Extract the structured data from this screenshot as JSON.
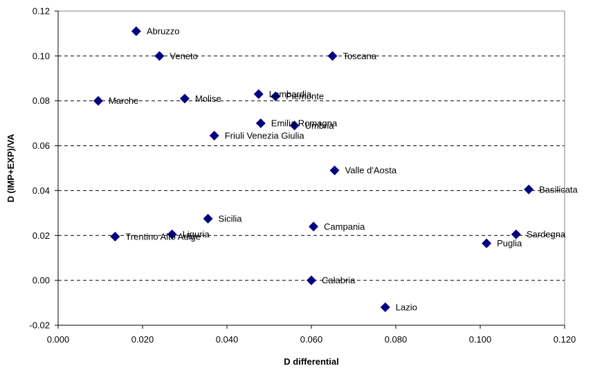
{
  "chart_data": {
    "type": "scatter",
    "title": "",
    "xlabel": "D differential",
    "ylabel": "D (IMP+EXP)/VA",
    "xlim": [
      0.0,
      0.12
    ],
    "ylim": [
      -0.02,
      0.12
    ],
    "x_ticks": [
      "0.000",
      "0.020",
      "0.040",
      "0.060",
      "0.080",
      "0.100",
      "0.120"
    ],
    "y_ticks": [
      "-0.02",
      "0.00",
      "0.02",
      "0.04",
      "0.06",
      "0.08",
      "0.10",
      "0.12"
    ],
    "grid": "horizontal dashed",
    "legend": "none",
    "marker_color": "#000080",
    "points": [
      {
        "label": "Abruzzo",
        "x": 0.0185,
        "y": 0.111
      },
      {
        "label": "Veneto",
        "x": 0.024,
        "y": 0.1
      },
      {
        "label": "Toscana",
        "x": 0.065,
        "y": 0.1
      },
      {
        "label": "Marche",
        "x": 0.0095,
        "y": 0.08
      },
      {
        "label": "Molise",
        "x": 0.03,
        "y": 0.081
      },
      {
        "label": "Lombardia",
        "x": 0.0475,
        "y": 0.083
      },
      {
        "label": "Piemonte",
        "x": 0.0515,
        "y": 0.082
      },
      {
        "label": "Emilia Romagna",
        "x": 0.048,
        "y": 0.07
      },
      {
        "label": "Umbria",
        "x": 0.056,
        "y": 0.069
      },
      {
        "label": "Friuli Venezia Giulia",
        "x": 0.037,
        "y": 0.0645
      },
      {
        "label": "Valle d'Aosta",
        "x": 0.0655,
        "y": 0.049
      },
      {
        "label": "Basilicata",
        "x": 0.1115,
        "y": 0.0405
      },
      {
        "label": "Sicilia",
        "x": 0.0355,
        "y": 0.0275
      },
      {
        "label": "Campania",
        "x": 0.0605,
        "y": 0.024
      },
      {
        "label": "Liguria",
        "x": 0.027,
        "y": 0.0205
      },
      {
        "label": "Trentino Alto Adige",
        "x": 0.0135,
        "y": 0.0195
      },
      {
        "label": "Sardegna",
        "x": 0.1085,
        "y": 0.0205
      },
      {
        "label": "Puglia",
        "x": 0.1015,
        "y": 0.0165
      },
      {
        "label": "Calabria",
        "x": 0.06,
        "y": 0.0
      },
      {
        "label": "Lazio",
        "x": 0.0775,
        "y": -0.012
      }
    ]
  }
}
